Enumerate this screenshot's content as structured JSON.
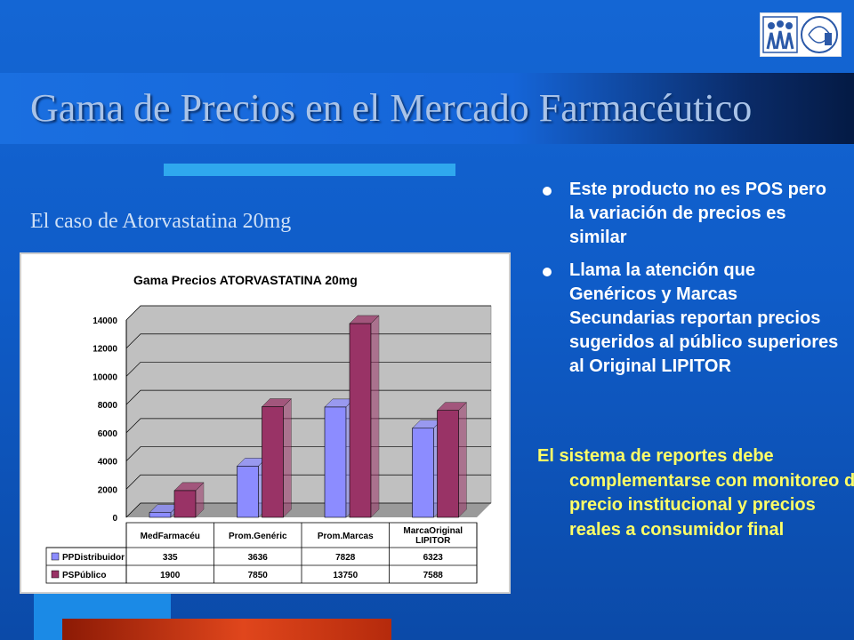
{
  "slide": {
    "title": "Gama de Precios en el Mercado Farmacéutico",
    "subtitle": "El caso de Atorvastatina 20mg",
    "bullets": [
      "Este producto no es POS pero la variación de precios es similar",
      "Llama la atención que Genéricos y Marcas Secundarias reportan precios sugeridos al público superiores al Original LIPITOR"
    ],
    "conclusion": "El sistema de reportes debe complementarse con monitoreo del precio institucional y precios reales a consumidor final",
    "colors": {
      "text": "#ffffff",
      "highlight": "#ffff66",
      "title": "#a9c3e8"
    }
  },
  "logo": {
    "icon": "institution-logo"
  },
  "chart_data": {
    "type": "bar",
    "title": "Gama Precios ATORVASTATINA 20mg",
    "categories": [
      "MedFarmacéu",
      "Prom.Genéric",
      "Prom.Marcas",
      "MarcaOriginal LIPITOR"
    ],
    "series": [
      {
        "name": "PPDistribuidor",
        "values": [
          335,
          3636,
          7828,
          6323
        ],
        "color": "#8c8cff"
      },
      {
        "name": "PSPúblico",
        "values": [
          1900,
          7850,
          13750,
          7588
        ],
        "color": "#993366"
      }
    ],
    "yticks": [
      0,
      2000,
      4000,
      6000,
      8000,
      10000,
      12000,
      14000
    ],
    "ylim": [
      0,
      14000
    ],
    "grid": true,
    "legend": "data-table"
  }
}
